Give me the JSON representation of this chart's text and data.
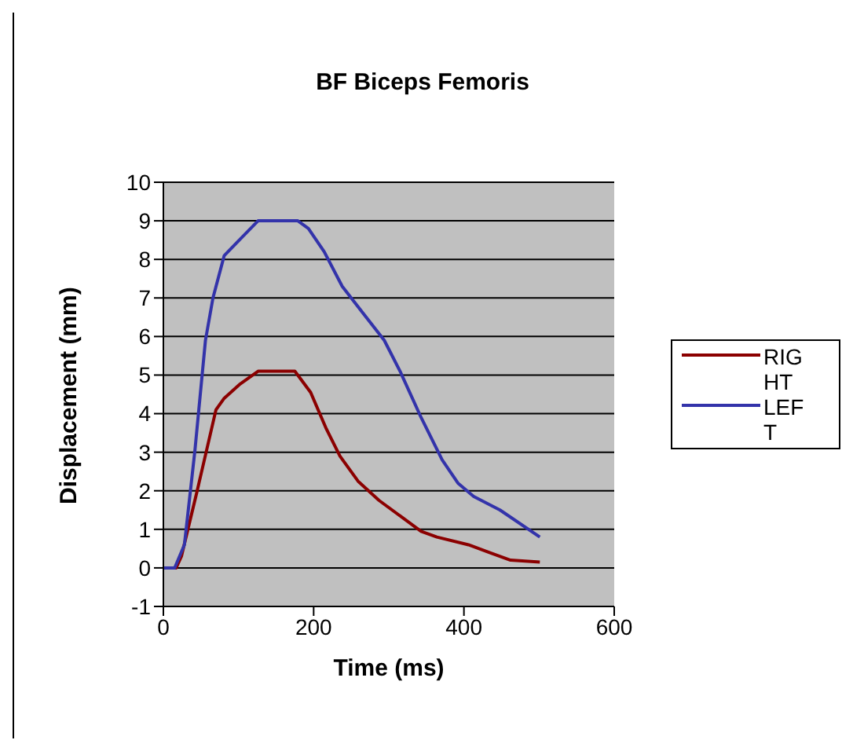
{
  "chart_data": {
    "type": "line",
    "title": "BF Biceps Femoris",
    "xlabel": "Time (ms)",
    "ylabel": "Displacement (mm)",
    "xlim": [
      0,
      600
    ],
    "xticks": [
      0,
      200,
      400,
      600
    ],
    "ylim": [
      -1,
      10
    ],
    "yticks": [
      -1,
      0,
      1,
      2,
      3,
      4,
      5,
      6,
      7,
      8,
      9,
      10
    ],
    "grid": "y",
    "legend": "right",
    "marker": "none",
    "line_style": "solid",
    "series": [
      {
        "name": "RIGHT",
        "color": "#8b0000",
        "x": [
          0,
          17,
          24,
          45,
          70,
          81,
          101,
          126,
          175,
          196,
          217,
          235,
          259,
          287,
          315,
          343,
          364,
          406,
          434,
          462,
          501
        ],
        "values": [
          0,
          0,
          0.3,
          2,
          4.1,
          4.4,
          4.75,
          5.1,
          5.1,
          4.55,
          3.6,
          2.9,
          2.25,
          1.75,
          1.35,
          0.95,
          0.8,
          0.6,
          0.4,
          0.2,
          0.15
        ]
      },
      {
        "name": "LEFT",
        "color": "#3333aa",
        "x": [
          0,
          15,
          28,
          42,
          56,
          66,
          81,
          101,
          126,
          179,
          193,
          214,
          238,
          266,
          294,
          315,
          343,
          371,
          392,
          413,
          448,
          501
        ],
        "values": [
          0,
          0,
          0.6,
          3.05,
          5.9,
          7,
          8.1,
          8.5,
          9,
          9,
          8.8,
          8.2,
          7.3,
          6.6,
          5.9,
          5.1,
          3.9,
          2.8,
          2.2,
          1.85,
          1.5,
          0.8
        ]
      }
    ]
  }
}
